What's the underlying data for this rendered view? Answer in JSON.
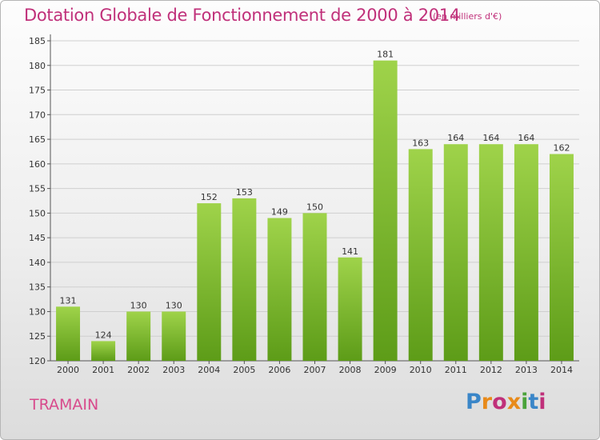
{
  "header": {
    "title": "Dotation Globale de Fonctionnement de 2000 à 2014",
    "subtitle": "(en milliers d'€)"
  },
  "footer": {
    "town": "TRAMAIN",
    "logo": {
      "letters": [
        "P",
        "r",
        "o",
        "x",
        "i",
        "t",
        "i"
      ]
    }
  },
  "colors": {
    "bar_light": "#9fd34a",
    "bar_dark": "#5d9c18",
    "grid": "#cfcfcf",
    "accent": "#c0307a"
  },
  "chart_data": {
    "type": "bar",
    "title": "Dotation Globale de Fonctionnement de 2000 à 2014",
    "subtitle": "(en milliers d'€)",
    "categories": [
      "2000",
      "2001",
      "2002",
      "2003",
      "2004",
      "2005",
      "2006",
      "2007",
      "2008",
      "2009",
      "2010",
      "2011",
      "2012",
      "2013",
      "2014"
    ],
    "values": [
      131,
      124,
      130,
      130,
      152,
      153,
      149,
      150,
      141,
      181,
      163,
      164,
      164,
      164,
      162
    ],
    "ylim": [
      120,
      185
    ],
    "yticks": [
      120,
      125,
      130,
      135,
      140,
      145,
      150,
      155,
      160,
      165,
      170,
      175,
      180,
      185
    ],
    "xlabel": "",
    "ylabel": "",
    "grid": true,
    "legend": "none"
  }
}
